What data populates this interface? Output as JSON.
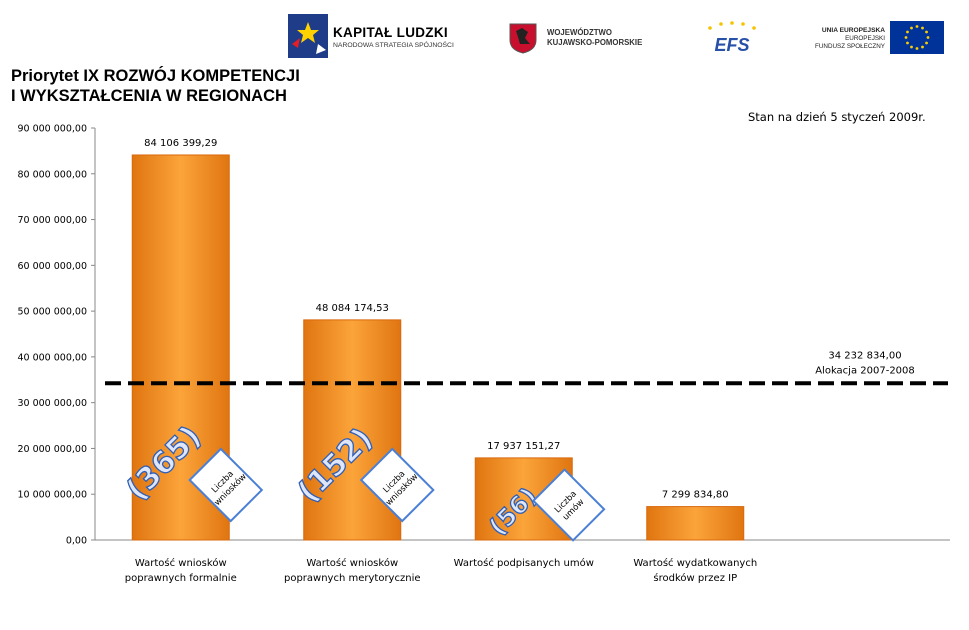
{
  "header": {
    "kapital_title": "KAPITAŁ LUDZKI",
    "kapital_subtitle": "NARODOWA STRATEGIA SPÓJNOŚCI",
    "wojewodztwo": "WOJEWÓDZTWO\nKUJAWSKO-POMORSKIE",
    "efs": "EFS",
    "ue_line1": "UNIA EUROPEJSKA",
    "ue_line2": "EUROPEJSKI",
    "ue_line3": "FUNDUSZ SPOŁECZNY"
  },
  "title": "Priorytet IX ROZWÓJ KOMPETENCJI\nI WYKSZTAŁCENIA W REGIONACH",
  "stan": "Stan na dzień  5 styczeń 2009r.",
  "colors": {
    "bar": "#f7941d",
    "bar_dark": "#d9690c",
    "bar_light": "#fbb14d",
    "count": "#2f5fb8",
    "box": "#4a7fd6"
  },
  "chart_data": {
    "type": "bar",
    "categories": [
      [
        "Wartość wniosków",
        "poprawnych formalnie"
      ],
      [
        "Wartość wniosków",
        "poprawnych merytorycznie"
      ],
      [
        "Wartość podpisanych  umów"
      ],
      [
        "Wartość wydatkowanych",
        "środków przez IP"
      ]
    ],
    "values": [
      84106399.29,
      48084174.53,
      17937151.27,
      7299834.8
    ],
    "value_labels": [
      "84 106 399,29",
      "48 084 174,53",
      "17 937 151,27",
      "7 299 834,80"
    ],
    "ylim": [
      0,
      90000000
    ],
    "yticks": [
      0,
      10000000,
      20000000,
      30000000,
      40000000,
      50000000,
      60000000,
      70000000,
      80000000,
      90000000
    ],
    "ytick_labels": [
      "0,00",
      "10 000 000,00",
      "20 000 000,00",
      "30 000 000,00",
      "40 000 000,00",
      "50 000 000,00",
      "60 000 000,00",
      "70 000 000,00",
      "80 000 000,00",
      "90 000 000,00"
    ],
    "grid": false,
    "reference_line": {
      "value": 34232834.0,
      "label_value": "34 232 834,00",
      "label_text": "Alokacja 2007-2008",
      "style": "dashed"
    },
    "annotations": [
      {
        "bar": 0,
        "count": "(365)",
        "box": [
          "Liczba",
          "wniosków"
        ]
      },
      {
        "bar": 1,
        "count": "(152)",
        "box": [
          "Liczba",
          "wniosków"
        ]
      },
      {
        "bar": 2,
        "count": "(56)",
        "box": [
          "Liczba",
          "umów"
        ]
      }
    ]
  }
}
